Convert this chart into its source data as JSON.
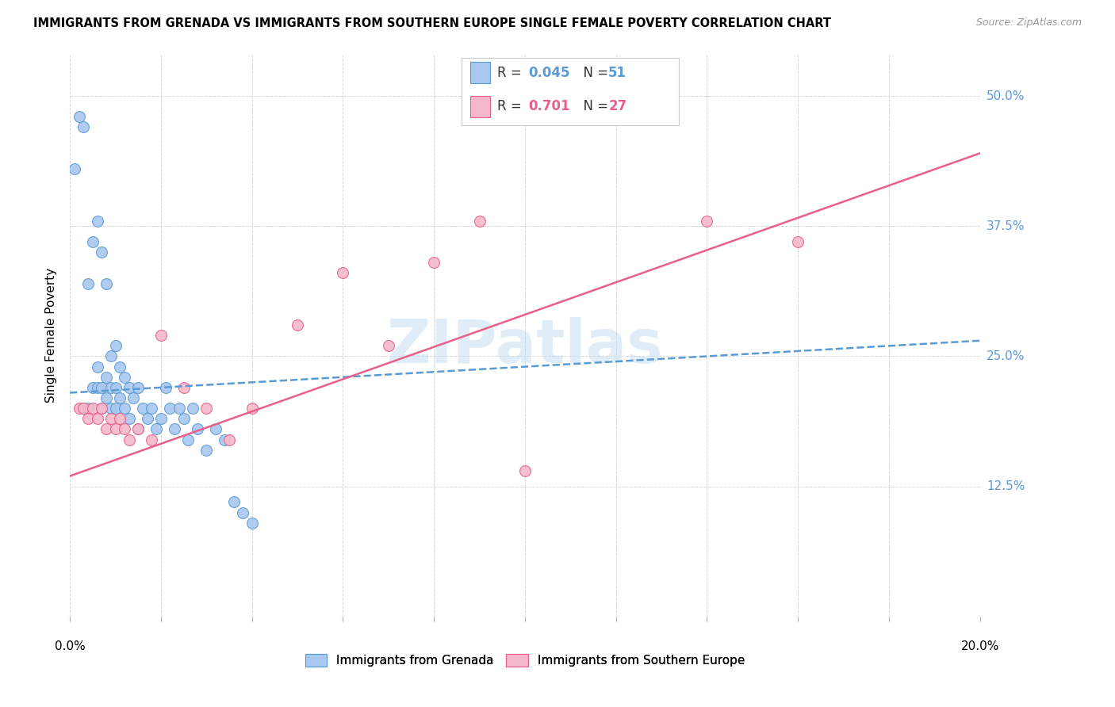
{
  "title": "IMMIGRANTS FROM GRENADA VS IMMIGRANTS FROM SOUTHERN EUROPE SINGLE FEMALE POVERTY CORRELATION CHART",
  "source": "Source: ZipAtlas.com",
  "ylabel": "Single Female Poverty",
  "xlim": [
    0.0,
    0.2
  ],
  "ylim": [
    0.0,
    0.54
  ],
  "color_grenada": "#a8c8f0",
  "color_se": "#f5b8c8",
  "line_color_grenada": "#5b9bd5",
  "line_color_se": "#e8608a",
  "watermark_color": "#c8dff0",
  "label_grenada": "Immigrants from Grenada",
  "label_se": "Immigrants from Southern Europe",
  "grenada_x": [
    0.001,
    0.002,
    0.003,
    0.003,
    0.004,
    0.004,
    0.005,
    0.005,
    0.006,
    0.006,
    0.006,
    0.007,
    0.007,
    0.007,
    0.008,
    0.008,
    0.008,
    0.009,
    0.009,
    0.009,
    0.01,
    0.01,
    0.01,
    0.011,
    0.011,
    0.012,
    0.012,
    0.013,
    0.013,
    0.014,
    0.015,
    0.015,
    0.016,
    0.017,
    0.018,
    0.019,
    0.02,
    0.021,
    0.022,
    0.023,
    0.024,
    0.025,
    0.026,
    0.027,
    0.028,
    0.03,
    0.032,
    0.034,
    0.036,
    0.038,
    0.04
  ],
  "grenada_y": [
    0.43,
    0.48,
    0.47,
    0.2,
    0.32,
    0.2,
    0.36,
    0.22,
    0.38,
    0.24,
    0.22,
    0.35,
    0.22,
    0.2,
    0.32,
    0.23,
    0.21,
    0.25,
    0.22,
    0.2,
    0.26,
    0.22,
    0.2,
    0.24,
    0.21,
    0.23,
    0.2,
    0.22,
    0.19,
    0.21,
    0.22,
    0.18,
    0.2,
    0.19,
    0.2,
    0.18,
    0.19,
    0.22,
    0.2,
    0.18,
    0.2,
    0.19,
    0.17,
    0.2,
    0.18,
    0.16,
    0.18,
    0.17,
    0.11,
    0.1,
    0.09
  ],
  "se_x": [
    0.002,
    0.003,
    0.004,
    0.005,
    0.006,
    0.007,
    0.008,
    0.009,
    0.01,
    0.011,
    0.012,
    0.013,
    0.015,
    0.018,
    0.02,
    0.025,
    0.03,
    0.035,
    0.04,
    0.05,
    0.06,
    0.07,
    0.08,
    0.09,
    0.1,
    0.14,
    0.16
  ],
  "se_y": [
    0.2,
    0.2,
    0.19,
    0.2,
    0.19,
    0.2,
    0.18,
    0.19,
    0.18,
    0.19,
    0.18,
    0.17,
    0.18,
    0.17,
    0.27,
    0.22,
    0.2,
    0.17,
    0.2,
    0.28,
    0.33,
    0.26,
    0.34,
    0.38,
    0.14,
    0.38,
    0.36
  ]
}
